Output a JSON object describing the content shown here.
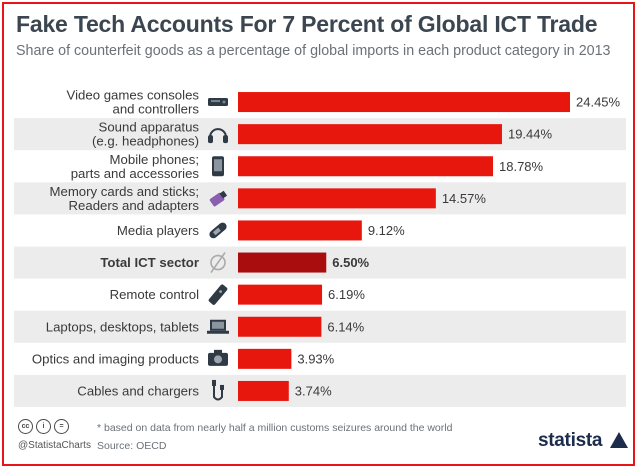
{
  "title": "Fake Tech Accounts For 7 Percent of Global ICT Trade",
  "subtitle": "Share of counterfeit goods as a percentage of global imports in each product category in 2013",
  "chart_data": {
    "type": "bar",
    "orientation": "horizontal",
    "categories": [
      [
        "Video games consoles",
        "and controllers"
      ],
      [
        "Sound apparatus",
        "(e.g. headphones)"
      ],
      [
        "Mobile phones;",
        "parts and accessories"
      ],
      [
        "Memory cards and sticks;",
        "Readers and adapters"
      ],
      [
        "Media players"
      ],
      [
        "Total ICT sector"
      ],
      [
        "Remote control"
      ],
      [
        "Laptops, desktops, tablets"
      ],
      [
        "Optics and imaging products"
      ],
      [
        "Cables and chargers"
      ]
    ],
    "values": [
      24.45,
      19.44,
      18.78,
      14.57,
      9.12,
      6.5,
      6.19,
      6.14,
      3.93,
      3.74
    ],
    "value_labels": [
      "24.45%",
      "19.44%",
      "18.78%",
      "14.57%",
      "9.12%",
      "6.50%",
      "6.19%",
      "6.14%",
      "3.93%",
      "3.74%"
    ],
    "icons": [
      "console-icon",
      "headphones-icon",
      "phone-icon",
      "memory-stick-icon",
      "media-player-icon",
      "empty-set-icon",
      "remote-icon",
      "laptop-icon",
      "camera-icon",
      "cable-icon"
    ],
    "highlight_index": 5,
    "unit": "%",
    "xlim": [
      0,
      24.45
    ],
    "colors": {
      "bar": "#e8170d",
      "highlight": "#a90d0d",
      "stripe": "#ececec"
    }
  },
  "footer": {
    "handle": "@StatistaCharts",
    "footnote": "* based on data from nearly half a million customs seizures around the world",
    "source": "Source: OECD",
    "brand": "statista",
    "cc_icons": [
      "cc",
      "i",
      "="
    ]
  }
}
